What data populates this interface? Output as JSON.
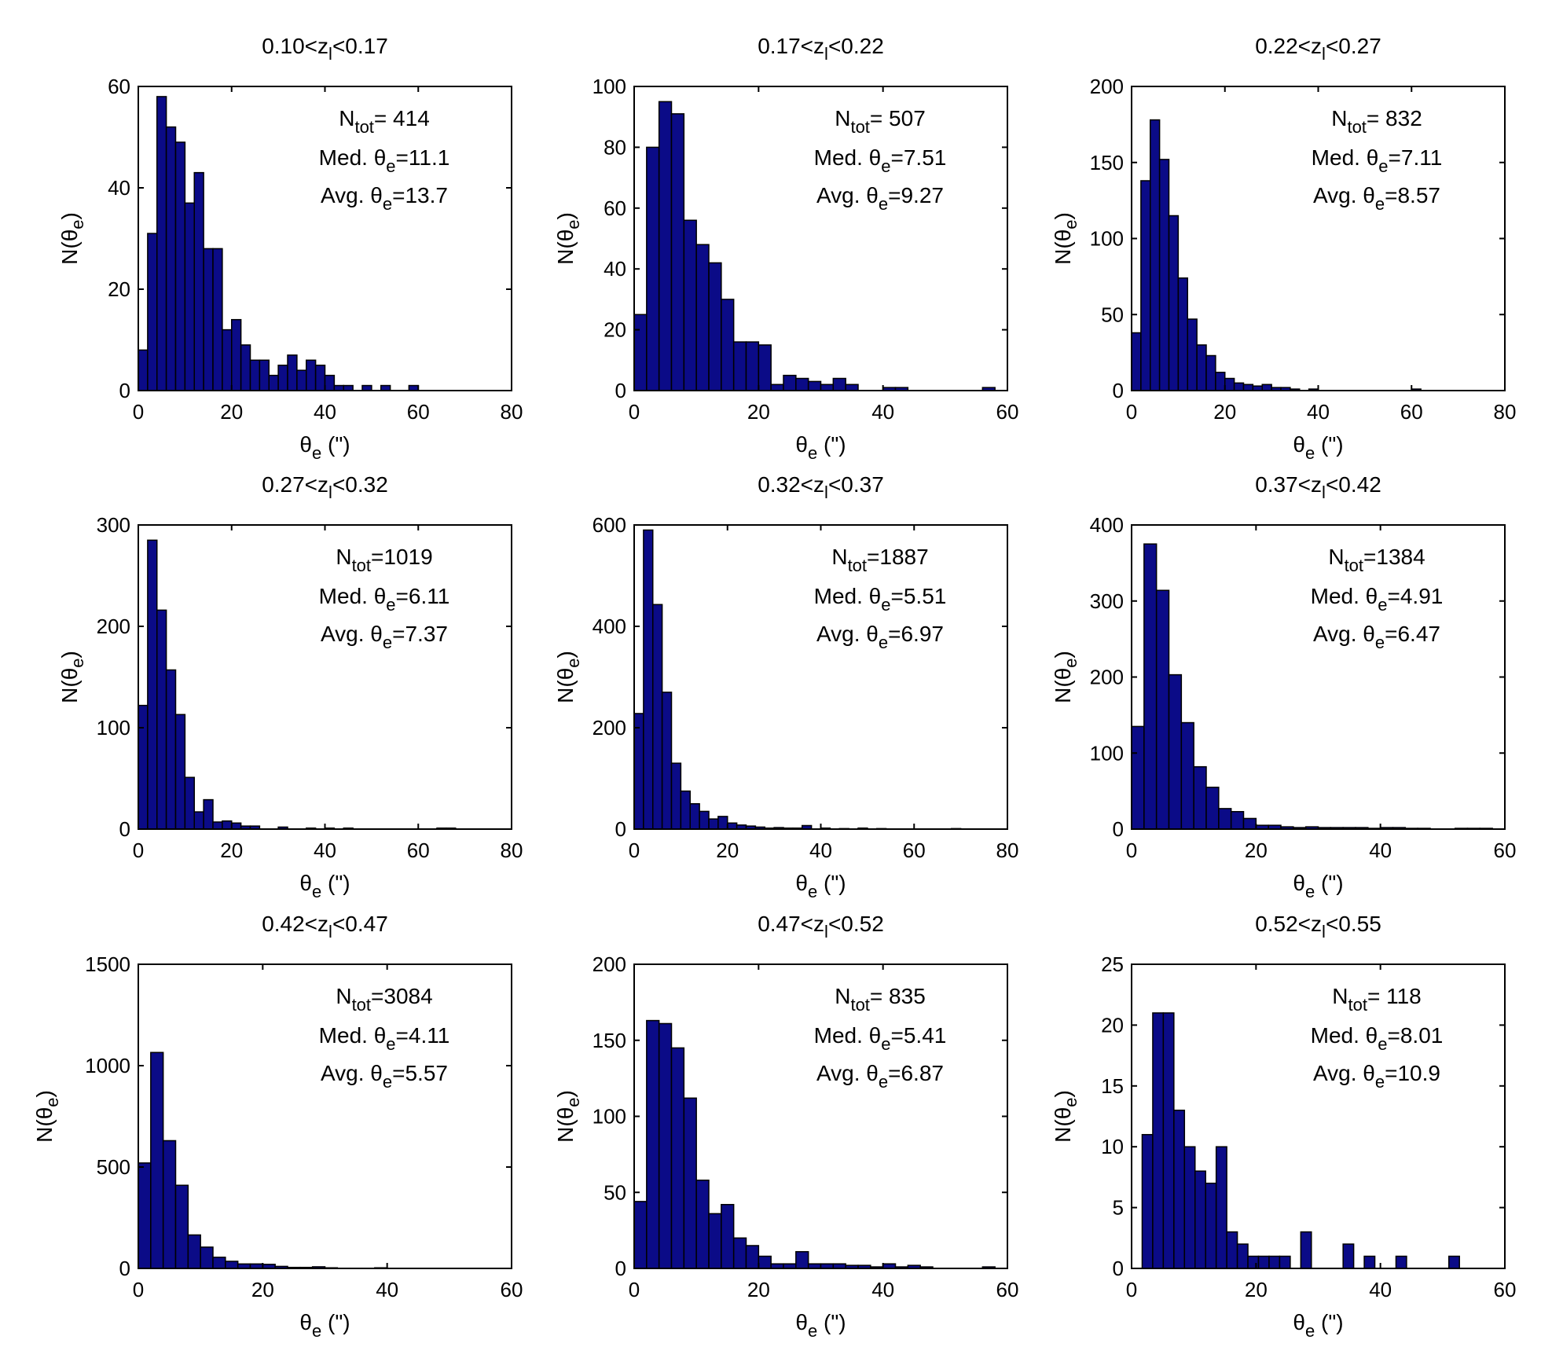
{
  "figure": {
    "bar_color": "#0b0b87",
    "panels": [
      {
        "title": {
          "pre": "0.10<z",
          "sub": "l",
          "post": "<0.17"
        },
        "annotation": {
          "ntot": "= 414",
          "median": "=11.1",
          "average": "=13.7"
        }
      },
      {
        "title": {
          "pre": "0.17<z",
          "sub": "l",
          "post": "<0.22"
        },
        "annotation": {
          "ntot": "= 507",
          "median": "=7.51",
          "average": "=9.27"
        }
      },
      {
        "title": {
          "pre": "0.22<z",
          "sub": "l",
          "post": "<0.27"
        },
        "annotation": {
          "ntot": "= 832",
          "median": "=7.11",
          "average": "=8.57"
        }
      },
      {
        "title": {
          "pre": "0.27<z",
          "sub": "l",
          "post": "<0.32"
        },
        "annotation": {
          "ntot": "=1019",
          "median": "=6.11",
          "average": "=7.37"
        }
      },
      {
        "title": {
          "pre": "0.32<z",
          "sub": "l",
          "post": "<0.37"
        },
        "annotation": {
          "ntot": "=1887",
          "median": "=5.51",
          "average": "=6.97"
        }
      },
      {
        "title": {
          "pre": "0.37<z",
          "sub": "l",
          "post": "<0.42"
        },
        "annotation": {
          "ntot": "=1384",
          "median": "=4.91",
          "average": "=6.47"
        }
      },
      {
        "title": {
          "pre": "0.42<z",
          "sub": "l",
          "post": "<0.47"
        },
        "annotation": {
          "ntot": "=3084",
          "median": "=4.11",
          "average": "=5.57"
        }
      },
      {
        "title": {
          "pre": "0.47<z",
          "sub": "l",
          "post": "<0.52"
        },
        "annotation": {
          "ntot": "= 835",
          "median": "=5.41",
          "average": "=6.87"
        }
      },
      {
        "title": {
          "pre": "0.52<z",
          "sub": "l",
          "post": "<0.55"
        },
        "annotation": {
          "ntot": "= 118",
          "median": "=8.01",
          "average": "=10.9"
        }
      }
    ],
    "labels": {
      "ylabel": {
        "main": "N(θ",
        "sub": "e",
        "close": ")"
      },
      "xlabel": {
        "main": "θ",
        "sub": "e",
        "rest": " (\")"
      },
      "ntot_main": "N",
      "ntot_sub": "tot",
      "median_main": "Med. θ",
      "average_main": "Avg. θ",
      "theta_sub": "e"
    }
  },
  "chart_data": [
    {
      "type": "bar",
      "title": "0.10<zl<0.17",
      "xlabel": "θe (\")",
      "ylabel": "N(θe)",
      "xlim": [
        0,
        80
      ],
      "ylim": [
        0,
        60
      ],
      "xticks": [
        0,
        20,
        40,
        60,
        80
      ],
      "yticks": [
        0,
        20,
        40,
        60
      ],
      "bin_width": 2,
      "bin_start": 0,
      "values": [
        8,
        31,
        58,
        52,
        49,
        37,
        43,
        28,
        28,
        12,
        14,
        9,
        6,
        6,
        3,
        5,
        7,
        4,
        6,
        5,
        3,
        1,
        1,
        0,
        1,
        0,
        1,
        0,
        0,
        1
      ]
    },
    {
      "type": "bar",
      "title": "0.17<zl<0.22",
      "xlabel": "θe (\")",
      "ylabel": "N(θe)",
      "xlim": [
        0,
        60
      ],
      "ylim": [
        0,
        100
      ],
      "xticks": [
        0,
        20,
        40,
        60
      ],
      "yticks": [
        0,
        20,
        40,
        60,
        80,
        100
      ],
      "bin_width": 2,
      "bin_start": 0,
      "values": [
        25,
        80,
        95,
        91,
        56,
        48,
        42,
        30,
        16,
        16,
        15,
        2,
        5,
        4,
        3,
        2,
        4,
        2,
        0,
        0,
        1,
        1,
        0,
        0,
        0,
        0,
        0,
        0,
        1
      ]
    },
    {
      "type": "bar",
      "title": "0.22<zl<0.27",
      "xlabel": "θe (\")",
      "ylabel": "N(θe)",
      "xlim": [
        0,
        80
      ],
      "ylim": [
        0,
        200
      ],
      "xticks": [
        0,
        20,
        40,
        60,
        80
      ],
      "yticks": [
        0,
        50,
        100,
        150,
        200
      ],
      "bin_width": 2,
      "bin_start": 0,
      "values": [
        38,
        138,
        178,
        152,
        115,
        74,
        47,
        30,
        23,
        12,
        8,
        5,
        4,
        3,
        4,
        2,
        2,
        1,
        0,
        1,
        0,
        0,
        0,
        0,
        0,
        0,
        0,
        0,
        0,
        0,
        1
      ]
    },
    {
      "type": "bar",
      "title": "0.27<zl<0.32",
      "xlabel": "θe (\")",
      "ylabel": "N(θe)",
      "xlim": [
        0,
        80
      ],
      "ylim": [
        0,
        300
      ],
      "xticks": [
        0,
        20,
        40,
        60,
        80
      ],
      "yticks": [
        0,
        100,
        200,
        300
      ],
      "bin_width": 2,
      "bin_start": 0,
      "values": [
        122,
        285,
        216,
        157,
        113,
        51,
        17,
        29,
        7,
        8,
        6,
        3,
        3,
        0,
        0,
        2,
        0,
        0,
        1,
        0,
        1,
        0,
        1,
        0,
        0,
        0,
        0,
        0,
        0,
        0,
        0,
        0,
        1,
        1
      ]
    },
    {
      "type": "bar",
      "title": "0.32<zl<0.37",
      "xlabel": "θe (\")",
      "ylabel": "N(θe)",
      "xlim": [
        0,
        80
      ],
      "ylim": [
        0,
        600
      ],
      "xticks": [
        0,
        20,
        40,
        60,
        80
      ],
      "yticks": [
        0,
        200,
        400,
        600
      ],
      "bin_width": 2,
      "bin_start": 0,
      "values": [
        228,
        590,
        443,
        270,
        130,
        75,
        50,
        35,
        20,
        25,
        12,
        8,
        6,
        4,
        2,
        3,
        2,
        2,
        7,
        0,
        2,
        0,
        1,
        0,
        2,
        0,
        1,
        0,
        0,
        0,
        0,
        0,
        0,
        0,
        1
      ]
    },
    {
      "type": "bar",
      "title": "0.37<zl<0.42",
      "xlabel": "θe (\")",
      "ylabel": "N(θe)",
      "xlim": [
        0,
        60
      ],
      "ylim": [
        0,
        400
      ],
      "xticks": [
        0,
        20,
        40,
        60
      ],
      "yticks": [
        0,
        100,
        200,
        300,
        400
      ],
      "bin_width": 2,
      "bin_start": 0,
      "values": [
        135,
        375,
        314,
        203,
        140,
        82,
        55,
        27,
        23,
        14,
        5,
        5,
        3,
        2,
        3,
        2,
        2,
        2,
        2,
        1,
        2,
        2,
        1,
        1,
        0,
        0,
        1,
        1,
        1,
        0
      ]
    },
    {
      "type": "bar",
      "title": "0.42<zl<0.47",
      "xlabel": "θe (\")",
      "ylabel": "N(θe)",
      "xlim": [
        0,
        60
      ],
      "ylim": [
        0,
        1500
      ],
      "xticks": [
        0,
        20,
        40,
        60
      ],
      "yticks": [
        0,
        500,
        1000,
        1500
      ],
      "bin_width": 2,
      "bin_start": 0,
      "values": [
        520,
        1065,
        630,
        410,
        165,
        105,
        55,
        35,
        22,
        22,
        20,
        10,
        5,
        5,
        8,
        3,
        1,
        1,
        1,
        3
      ]
    },
    {
      "type": "bar",
      "title": "0.47<zl<0.52",
      "xlabel": "θe (\")",
      "ylabel": "N(θe)",
      "xlim": [
        0,
        60
      ],
      "ylim": [
        0,
        200
      ],
      "xticks": [
        0,
        20,
        40,
        60
      ],
      "yticks": [
        0,
        50,
        100,
        150,
        200
      ],
      "bin_width": 2,
      "bin_start": 0,
      "values": [
        44,
        163,
        161,
        145,
        112,
        58,
        36,
        42,
        20,
        15,
        8,
        3,
        3,
        11,
        3,
        3,
        3,
        2,
        2,
        1,
        3,
        1,
        2,
        1,
        0,
        0,
        0,
        0,
        1
      ]
    },
    {
      "type": "bar",
      "title": "0.52<zl<0.55",
      "xlabel": "θe (\")",
      "ylabel": "N(θe)",
      "xlim": [
        0,
        60
      ],
      "ylim": [
        0,
        25
      ],
      "xticks": [
        0,
        20,
        40,
        60
      ],
      "yticks": [
        0,
        5,
        10,
        15,
        20,
        25
      ],
      "bin_width": 1.7,
      "bin_start": 1.7,
      "values": [
        11,
        21,
        21,
        13,
        10,
        8,
        7,
        10,
        3,
        2,
        1,
        1,
        1,
        1,
        0,
        3,
        0,
        0,
        0,
        2,
        0,
        1,
        0,
        0,
        1,
        0,
        0,
        0,
        0,
        1
      ]
    }
  ]
}
